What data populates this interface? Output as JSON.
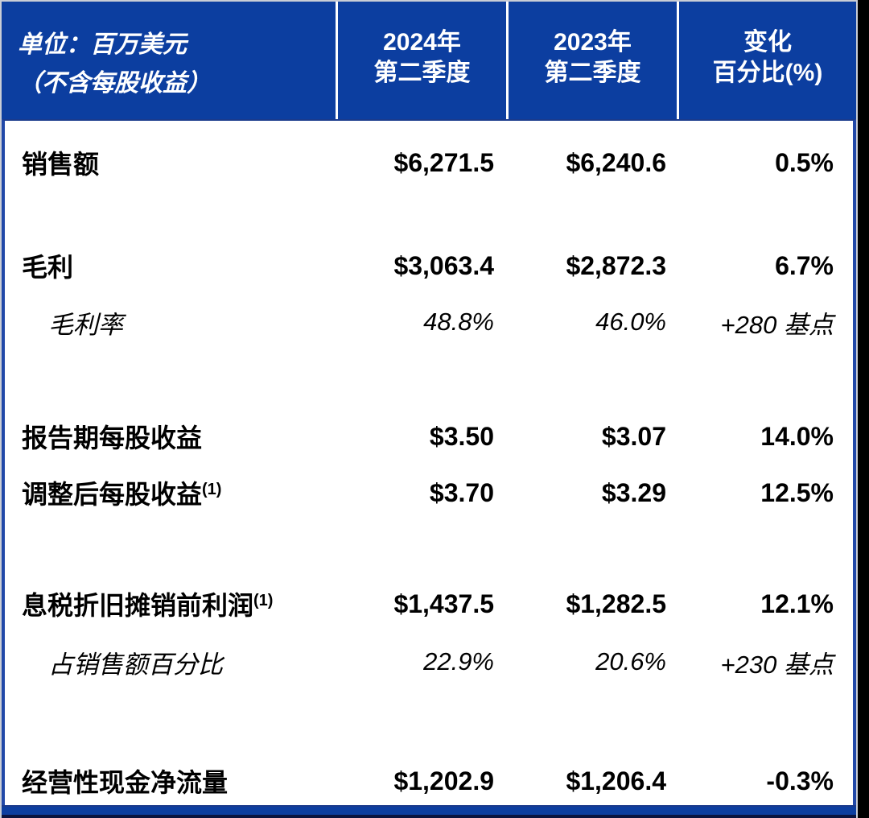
{
  "table": {
    "unit_title_line1": "单位：百万美元",
    "unit_title_line2": "（不含每股收益）",
    "columns": [
      {
        "line1": "2024年",
        "line2": "第二季度"
      },
      {
        "line1": "2023年",
        "line2": "第二季度"
      },
      {
        "line1": "变化",
        "line2": "百分比(%)"
      }
    ],
    "rows": [
      {
        "label": "销售额",
        "sup": "",
        "q2_2024": "$6,271.5",
        "q2_2023": "$6,240.6",
        "change": "0.5%"
      },
      {
        "label": "毛利",
        "sup": "",
        "q2_2024": "$3,063.4",
        "q2_2023": "$2,872.3",
        "change": "6.7%"
      },
      {
        "label": "毛利率",
        "sup": "",
        "q2_2024": "48.8%",
        "q2_2023": "46.0%",
        "change": "+280 基点"
      },
      {
        "label": "报告期每股收益",
        "sup": "",
        "q2_2024": "$3.50",
        "q2_2023": "$3.07",
        "change": "14.0%"
      },
      {
        "label": "调整后每股收益",
        "sup": "(1)",
        "q2_2024": "$3.70",
        "q2_2023": "$3.29",
        "change": "12.5%"
      },
      {
        "label": "息税折旧摊销前利润",
        "sup": "(1)",
        "q2_2024": "$1,437.5",
        "q2_2023": "$1,282.5",
        "change": "12.1%"
      },
      {
        "label": "占销售额百分比",
        "sup": "",
        "q2_2024": "22.9%",
        "q2_2023": "20.6%",
        "change": "+230 基点"
      },
      {
        "label": "经营性现金净流量",
        "sup": "",
        "q2_2024": "$1,202.9",
        "q2_2023": "$1,206.4",
        "change": "-0.3%"
      }
    ],
    "colors": {
      "header_blue": "#0c3ea0",
      "border_blue": "#2148a8",
      "dark_navy": "#0a1440",
      "header_text": "#ffffff",
      "body_text": "#000000",
      "outer_gray": "#c9cdd6",
      "right_strip": "#000000"
    }
  },
  "chart_data": {
    "type": "table",
    "title": "单位：百万美元（不含每股收益）",
    "columns": [
      "",
      "2024年第二季度",
      "2023年第二季度",
      "变化百分比(%)"
    ],
    "rows": [
      [
        "销售额",
        "$6,271.5",
        "$6,240.6",
        "0.5%"
      ],
      [
        "毛利",
        "$3,063.4",
        "$2,872.3",
        "6.7%"
      ],
      [
        "毛利率",
        "48.8%",
        "46.0%",
        "+280 基点"
      ],
      [
        "报告期每股收益",
        "$3.50",
        "$3.07",
        "14.0%"
      ],
      [
        "调整后每股收益(1)",
        "$3.70",
        "$3.29",
        "12.5%"
      ],
      [
        "息税折旧摊销前利润(1)",
        "$1,437.5",
        "$1,282.5",
        "12.1%"
      ],
      [
        "占销售额百分比",
        "22.9%",
        "20.6%",
        "+230 基点"
      ],
      [
        "经营性现金净流量",
        "$1,202.9",
        "$1,206.4",
        "-0.3%"
      ]
    ],
    "layout": {
      "grid": "off",
      "header_background": "#0c3ea0",
      "sub_rows_italic": [
        2,
        6
      ]
    }
  }
}
